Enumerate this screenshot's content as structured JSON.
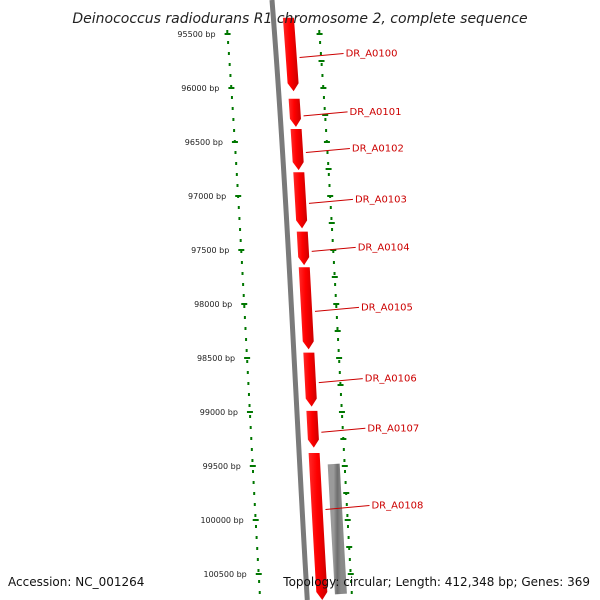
{
  "title": "Deinococcus radiodurans R1 chromosome 2, complete sequence",
  "accession_text": "Accession: NC_001264",
  "summary_text": "Topology: circular; Length: 412,348 bp; Genes: 369",
  "colors": {
    "gene": "#ff0000",
    "gene_label": "#cc0000",
    "backbone": "#7a7a7a",
    "dots": "#007700"
  },
  "ticks": [
    {
      "bp": 95500,
      "label": "95500 bp"
    },
    {
      "bp": 96000,
      "label": "96000 bp"
    },
    {
      "bp": 96500,
      "label": "96500 bp"
    },
    {
      "bp": 97000,
      "label": "97000 bp"
    },
    {
      "bp": 97500,
      "label": "97500 bp"
    },
    {
      "bp": 98000,
      "label": "98000 bp"
    },
    {
      "bp": 98500,
      "label": "98500 bp"
    },
    {
      "bp": 99000,
      "label": "99000 bp"
    },
    {
      "bp": 99500,
      "label": "99500 bp"
    },
    {
      "bp": 100000,
      "label": "100000 bp"
    },
    {
      "bp": 100500,
      "label": "100500 bp"
    }
  ],
  "genes": [
    {
      "name": "DR_A0100",
      "start": 95350,
      "end": 96030
    },
    {
      "name": "DR_A0101",
      "start": 96100,
      "end": 96360
    },
    {
      "name": "DR_A0102",
      "start": 96380,
      "end": 96760
    },
    {
      "name": "DR_A0103",
      "start": 96780,
      "end": 97300
    },
    {
      "name": "DR_A0104",
      "start": 97330,
      "end": 97640
    },
    {
      "name": "DR_A0105",
      "start": 97660,
      "end": 98420
    },
    {
      "name": "DR_A0106",
      "start": 98450,
      "end": 98950
    },
    {
      "name": "DR_A0107",
      "start": 98990,
      "end": 99330
    },
    {
      "name": "DR_A0108",
      "start": 99380,
      "end": 100750
    }
  ]
}
